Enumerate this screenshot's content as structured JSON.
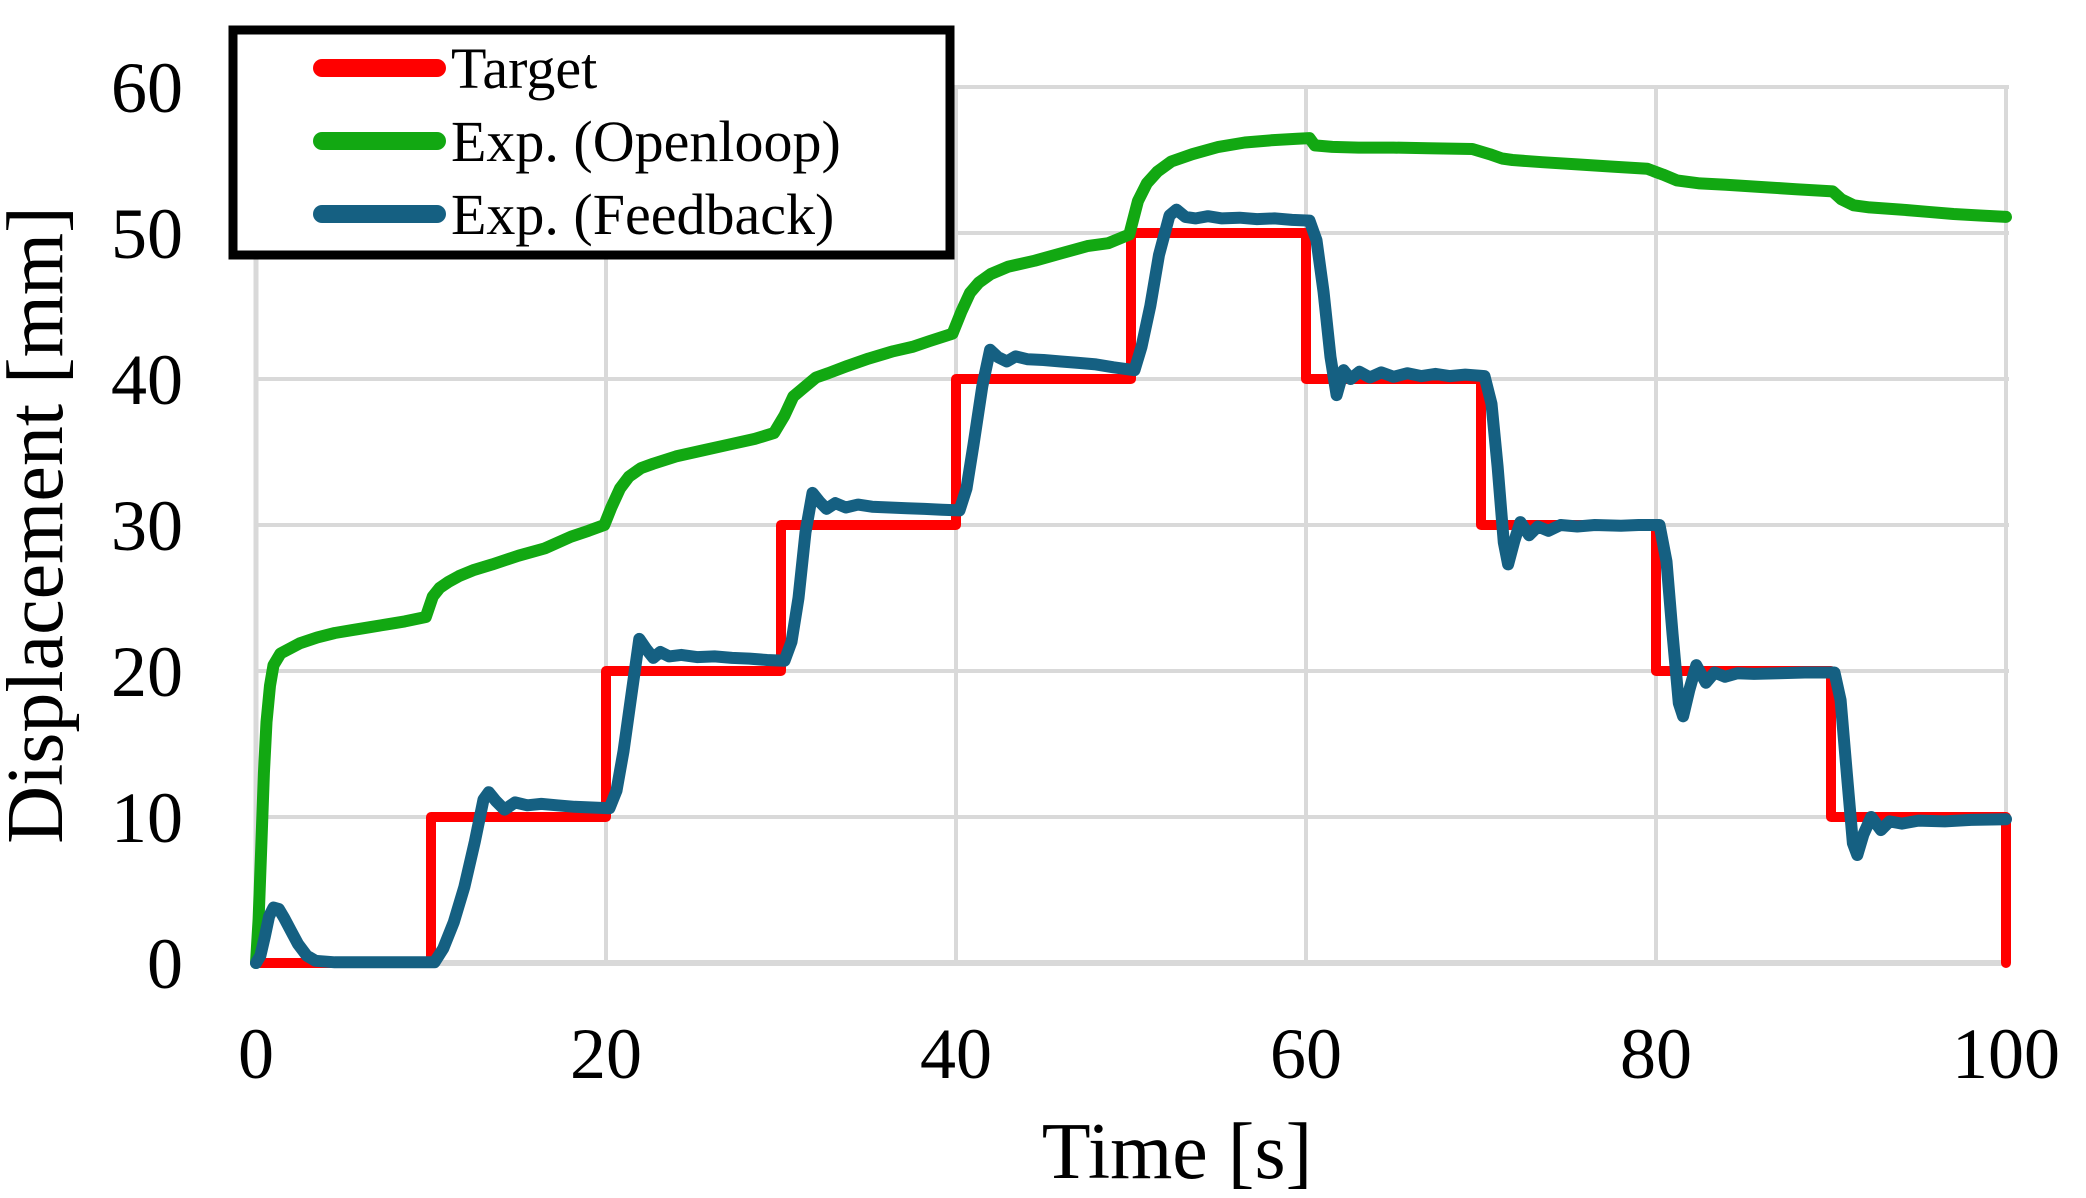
{
  "chart_data": {
    "type": "line",
    "title": "",
    "xlabel": "Time [s]",
    "ylabel": "Displacement [mm]",
    "xlim": [
      0,
      100
    ],
    "ylim": [
      0,
      60
    ],
    "x_ticks": [
      0,
      20,
      40,
      60,
      80,
      100
    ],
    "y_ticks": [
      0,
      10,
      20,
      30,
      40,
      50,
      60
    ],
    "grid": true,
    "grid_color": "#D9D9D9",
    "background_color": "#FFFFFF",
    "text_color": "#000000",
    "legend_position": "top-left",
    "legend_border_color": "#000000",
    "series": [
      {
        "name": "Target",
        "color": "#FF0000",
        "points": [
          [
            0,
            0
          ],
          [
            10,
            0
          ],
          [
            10,
            10
          ],
          [
            20,
            10
          ],
          [
            20,
            20
          ],
          [
            30,
            20
          ],
          [
            30,
            30
          ],
          [
            40,
            30
          ],
          [
            40,
            40
          ],
          [
            50,
            40
          ],
          [
            50,
            50
          ],
          [
            60,
            50
          ],
          [
            60,
            40
          ],
          [
            70,
            40
          ],
          [
            70,
            30
          ],
          [
            80,
            30
          ],
          [
            80,
            20
          ],
          [
            90,
            20
          ],
          [
            90,
            10
          ],
          [
            100,
            10
          ],
          [
            100,
            0
          ]
        ]
      },
      {
        "name": "Exp. (Openloop)",
        "color": "#12A812",
        "points": [
          [
            0,
            0
          ],
          [
            0.15,
            3
          ],
          [
            0.3,
            8
          ],
          [
            0.45,
            13
          ],
          [
            0.6,
            16.5
          ],
          [
            0.8,
            19
          ],
          [
            1.0,
            20.4
          ],
          [
            1.4,
            21.2
          ],
          [
            2.5,
            21.9
          ],
          [
            3.5,
            22.3
          ],
          [
            4.5,
            22.6
          ],
          [
            5.5,
            22.8
          ],
          [
            6.5,
            23.0
          ],
          [
            7.5,
            23.2
          ],
          [
            8.5,
            23.4
          ],
          [
            9.7,
            23.7
          ],
          [
            10.1,
            25.1
          ],
          [
            10.5,
            25.7
          ],
          [
            11,
            26.1
          ],
          [
            11.6,
            26.5
          ],
          [
            12.4,
            26.9
          ],
          [
            13.5,
            27.3
          ],
          [
            15,
            27.9
          ],
          [
            16.5,
            28.4
          ],
          [
            18,
            29.2
          ],
          [
            19,
            29.6
          ],
          [
            19.9,
            30.0
          ],
          [
            20.3,
            31.2
          ],
          [
            20.8,
            32.5
          ],
          [
            21.3,
            33.3
          ],
          [
            22,
            33.9
          ],
          [
            22.7,
            34.2
          ],
          [
            24,
            34.7
          ],
          [
            25.5,
            35.1
          ],
          [
            27,
            35.5
          ],
          [
            28.5,
            35.9
          ],
          [
            29.6,
            36.3
          ],
          [
            30.2,
            37.5
          ],
          [
            30.7,
            38.8
          ],
          [
            31.2,
            39.3
          ],
          [
            32,
            40.1
          ],
          [
            32.7,
            40.4
          ],
          [
            33.8,
            40.9
          ],
          [
            35,
            41.4
          ],
          [
            36.4,
            41.9
          ],
          [
            37.5,
            42.2
          ],
          [
            38.5,
            42.6
          ],
          [
            39.8,
            43.1
          ],
          [
            40.3,
            44.6
          ],
          [
            40.8,
            45.9
          ],
          [
            41.3,
            46.6
          ],
          [
            42,
            47.2
          ],
          [
            43,
            47.7
          ],
          [
            44.5,
            48.1
          ],
          [
            46,
            48.6
          ],
          [
            47.5,
            49.1
          ],
          [
            48.7,
            49.3
          ],
          [
            49.9,
            49.9
          ],
          [
            50.4,
            52.2
          ],
          [
            50.9,
            53.4
          ],
          [
            51.5,
            54.2
          ],
          [
            52.3,
            54.9
          ],
          [
            53.5,
            55.4
          ],
          [
            55,
            55.9
          ],
          [
            56.5,
            56.2
          ],
          [
            58,
            56.35
          ],
          [
            59.5,
            56.45
          ],
          [
            60.2,
            56.5
          ],
          [
            60.5,
            56.0
          ],
          [
            61.5,
            55.9
          ],
          [
            63,
            55.85
          ],
          [
            65,
            55.85
          ],
          [
            67,
            55.8
          ],
          [
            69.5,
            55.75
          ],
          [
            70.5,
            55.4
          ],
          [
            71.2,
            55.1
          ],
          [
            71.8,
            55.0
          ],
          [
            73.5,
            54.85
          ],
          [
            75.5,
            54.7
          ],
          [
            77.5,
            54.55
          ],
          [
            79.5,
            54.4
          ],
          [
            80.4,
            54.0
          ],
          [
            81.2,
            53.6
          ],
          [
            82.5,
            53.4
          ],
          [
            84,
            53.3
          ],
          [
            86,
            53.15
          ],
          [
            88,
            53.0
          ],
          [
            90.1,
            52.85
          ],
          [
            90.6,
            52.3
          ],
          [
            91.3,
            51.9
          ],
          [
            92.2,
            51.75
          ],
          [
            94,
            51.6
          ],
          [
            95.5,
            51.45
          ],
          [
            97,
            51.3
          ],
          [
            98.5,
            51.2
          ],
          [
            100,
            51.1
          ]
        ]
      },
      {
        "name": "Exp. (Feedback)",
        "color": "#156082",
        "points": [
          [
            0,
            0
          ],
          [
            0.25,
            0.5
          ],
          [
            0.5,
            1.8
          ],
          [
            0.75,
            3.2
          ],
          [
            1.0,
            3.8
          ],
          [
            1.3,
            3.7
          ],
          [
            1.6,
            3.1
          ],
          [
            2.0,
            2.2
          ],
          [
            2.4,
            1.3
          ],
          [
            2.9,
            0.5
          ],
          [
            3.4,
            0.15
          ],
          [
            4.5,
            0.05
          ],
          [
            6,
            0.05
          ],
          [
            8,
            0.05
          ],
          [
            10.2,
            0.05
          ],
          [
            10.7,
            1.0
          ],
          [
            11.3,
            2.8
          ],
          [
            11.9,
            5.2
          ],
          [
            12.5,
            8.3
          ],
          [
            13.0,
            11.2
          ],
          [
            13.3,
            11.7
          ],
          [
            13.7,
            11.1
          ],
          [
            14.2,
            10.5
          ],
          [
            14.8,
            11.0
          ],
          [
            15.5,
            10.8
          ],
          [
            16.3,
            10.9
          ],
          [
            17.2,
            10.8
          ],
          [
            18.2,
            10.7
          ],
          [
            19.2,
            10.65
          ],
          [
            20.2,
            10.6
          ],
          [
            20.6,
            11.8
          ],
          [
            21.0,
            14.5
          ],
          [
            21.5,
            18.8
          ],
          [
            21.9,
            22.2
          ],
          [
            22.3,
            21.5
          ],
          [
            22.7,
            20.9
          ],
          [
            23.1,
            21.3
          ],
          [
            23.6,
            21.0
          ],
          [
            24.3,
            21.1
          ],
          [
            25.2,
            20.95
          ],
          [
            26.2,
            21.0
          ],
          [
            27.2,
            20.9
          ],
          [
            28.2,
            20.85
          ],
          [
            29.2,
            20.75
          ],
          [
            30.2,
            20.7
          ],
          [
            30.6,
            22.0
          ],
          [
            31.0,
            25.0
          ],
          [
            31.4,
            29.5
          ],
          [
            31.8,
            32.2
          ],
          [
            32.2,
            31.6
          ],
          [
            32.6,
            31.1
          ],
          [
            33.1,
            31.5
          ],
          [
            33.7,
            31.2
          ],
          [
            34.4,
            31.4
          ],
          [
            35.2,
            31.25
          ],
          [
            36.2,
            31.2
          ],
          [
            37.2,
            31.15
          ],
          [
            38.2,
            31.1
          ],
          [
            39.2,
            31.05
          ],
          [
            40.2,
            31.0
          ],
          [
            40.6,
            32.5
          ],
          [
            41.0,
            35.5
          ],
          [
            41.5,
            39.5
          ],
          [
            41.95,
            42.0
          ],
          [
            42.4,
            41.5
          ],
          [
            42.9,
            41.2
          ],
          [
            43.4,
            41.55
          ],
          [
            44.1,
            41.35
          ],
          [
            45,
            41.3
          ],
          [
            46,
            41.2
          ],
          [
            47,
            41.1
          ],
          [
            48,
            41.0
          ],
          [
            49,
            40.8
          ],
          [
            50.2,
            40.6
          ],
          [
            50.6,
            42.2
          ],
          [
            51.1,
            45.0
          ],
          [
            51.6,
            48.5
          ],
          [
            52.2,
            51.2
          ],
          [
            52.6,
            51.6
          ],
          [
            53.1,
            51.1
          ],
          [
            53.7,
            51.0
          ],
          [
            54.4,
            51.15
          ],
          [
            55.2,
            51.0
          ],
          [
            56.2,
            51.05
          ],
          [
            57.2,
            50.95
          ],
          [
            58.2,
            51.0
          ],
          [
            59.2,
            50.9
          ],
          [
            60.2,
            50.85
          ],
          [
            60.6,
            49.5
          ],
          [
            61.0,
            46.0
          ],
          [
            61.4,
            41.5
          ],
          [
            61.75,
            38.9
          ],
          [
            62.15,
            40.6
          ],
          [
            62.55,
            40.0
          ],
          [
            63.05,
            40.5
          ],
          [
            63.65,
            40.1
          ],
          [
            64.3,
            40.45
          ],
          [
            65,
            40.15
          ],
          [
            65.8,
            40.4
          ],
          [
            66.6,
            40.2
          ],
          [
            67.4,
            40.35
          ],
          [
            68.2,
            40.2
          ],
          [
            69.1,
            40.3
          ],
          [
            70.2,
            40.2
          ],
          [
            70.6,
            38.3
          ],
          [
            70.95,
            34.0
          ],
          [
            71.3,
            28.8
          ],
          [
            71.55,
            27.3
          ],
          [
            71.9,
            28.9
          ],
          [
            72.25,
            30.2
          ],
          [
            72.75,
            29.3
          ],
          [
            73.25,
            29.9
          ],
          [
            73.85,
            29.6
          ],
          [
            74.55,
            30.0
          ],
          [
            75.5,
            29.9
          ],
          [
            76.5,
            30.0
          ],
          [
            78,
            29.95
          ],
          [
            79,
            30.0
          ],
          [
            80.2,
            30.0
          ],
          [
            80.6,
            27.5
          ],
          [
            80.95,
            22.5
          ],
          [
            81.3,
            17.8
          ],
          [
            81.55,
            16.9
          ],
          [
            81.9,
            18.7
          ],
          [
            82.3,
            20.4
          ],
          [
            82.85,
            19.2
          ],
          [
            83.35,
            19.9
          ],
          [
            83.95,
            19.6
          ],
          [
            84.65,
            19.85
          ],
          [
            85.6,
            19.8
          ],
          [
            87,
            19.85
          ],
          [
            88.5,
            19.9
          ],
          [
            90.2,
            19.9
          ],
          [
            90.55,
            18.0
          ],
          [
            90.9,
            13.0
          ],
          [
            91.25,
            8.2
          ],
          [
            91.5,
            7.4
          ],
          [
            91.85,
            8.8
          ],
          [
            92.3,
            10.0
          ],
          [
            92.85,
            9.1
          ],
          [
            93.35,
            9.7
          ],
          [
            94.05,
            9.55
          ],
          [
            95,
            9.75
          ],
          [
            96.5,
            9.7
          ],
          [
            98,
            9.8
          ],
          [
            100,
            9.85
          ]
        ]
      }
    ]
  }
}
